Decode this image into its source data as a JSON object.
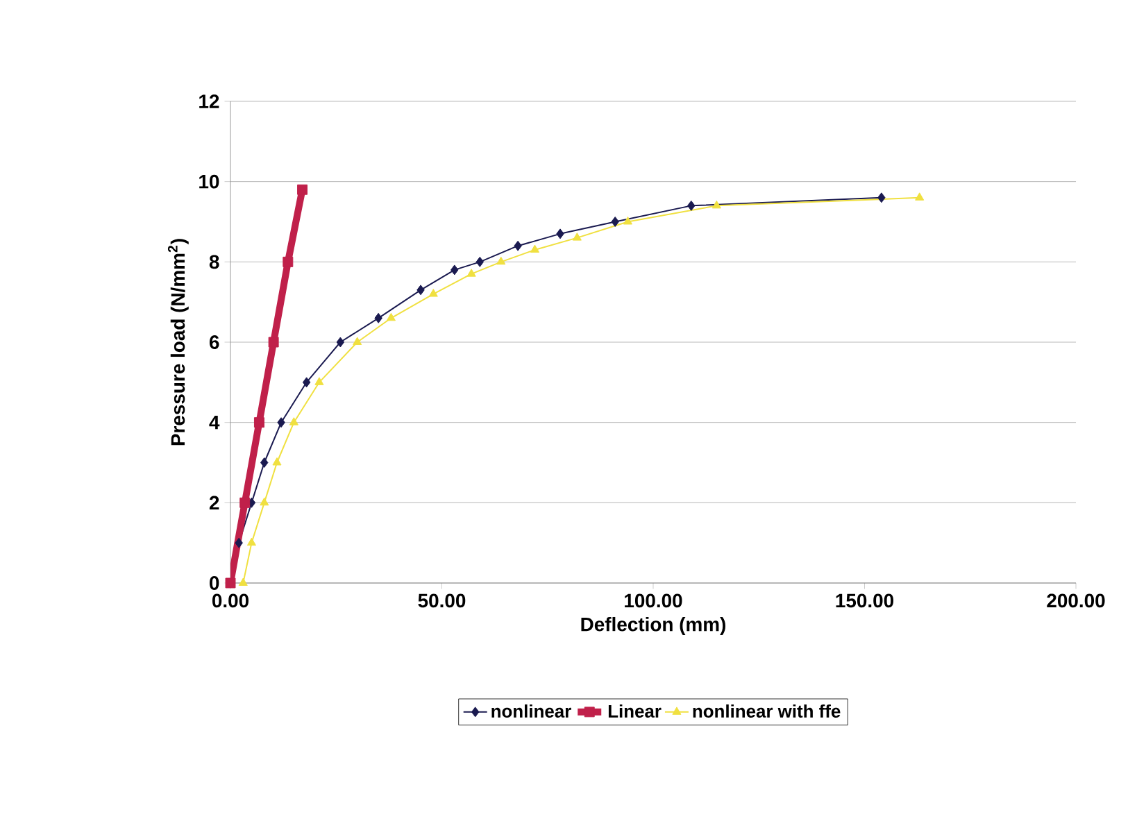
{
  "chart_data": {
    "type": "line",
    "xlabel": "Deflection (mm)",
    "ylabel": "Pressure load (N/mm$^{2}$)",
    "xlim": [
      0,
      200
    ],
    "ylim": [
      0,
      12
    ],
    "xticks": [
      {
        "value": 0,
        "label": "0.00"
      },
      {
        "value": 50,
        "label": "50.00"
      },
      {
        "value": 100,
        "label": "100.00"
      },
      {
        "value": 150,
        "label": "150.00"
      },
      {
        "value": 200,
        "label": "200.00"
      }
    ],
    "yticks": [
      0,
      2,
      4,
      6,
      8,
      10,
      12
    ],
    "grid": "y",
    "legend": "bottom",
    "series": [
      {
        "name": "nonlinear",
        "color": "#1a1a50",
        "marker": "diamond",
        "x": [
          0,
          2,
          5,
          8,
          12,
          18,
          26,
          35,
          45,
          53,
          59,
          68,
          78,
          91,
          109,
          154
        ],
        "values": [
          0,
          1,
          2,
          3,
          4,
          5,
          6,
          6.6,
          7.3,
          7.8,
          8.0,
          8.4,
          8.7,
          9.0,
          9.4,
          9.6
        ]
      },
      {
        "name": "Linear",
        "color": "#c0204a",
        "marker": "square",
        "x": [
          0,
          3.4,
          6.8,
          10.2,
          13.6,
          17
        ],
        "values": [
          0,
          2,
          4,
          6,
          8,
          9.8
        ]
      },
      {
        "name": "nonlinear with ffe",
        "color": "#f0e040",
        "marker": "triangle",
        "x": [
          3,
          5,
          8,
          11,
          15,
          21,
          30,
          38,
          48,
          57,
          64,
          72,
          82,
          94,
          115,
          163
        ],
        "values": [
          0,
          1,
          2,
          3,
          4,
          5,
          6,
          6.6,
          7.2,
          7.7,
          8.0,
          8.3,
          8.6,
          9.0,
          9.4,
          9.6
        ]
      }
    ]
  }
}
